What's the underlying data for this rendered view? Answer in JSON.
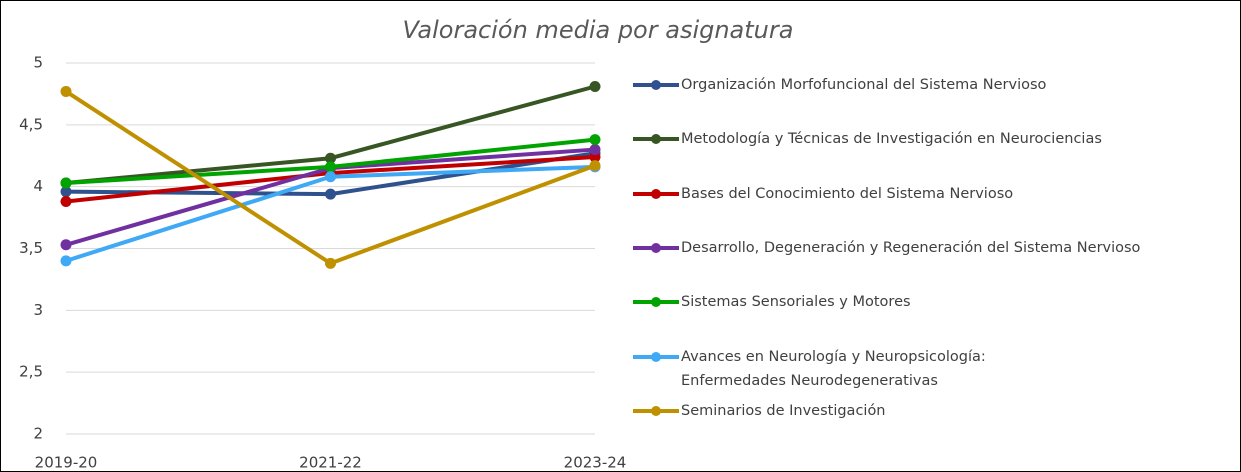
{
  "chart_data": {
    "type": "line",
    "title": "Valoración media por asignatura",
    "categories": [
      "2019-20",
      "2021-22",
      "2023-24"
    ],
    "series": [
      {
        "name": "Organización Morfofuncional del Sistema Nervioso",
        "color": "#2f528f",
        "values": [
          3.96,
          3.94,
          4.27
        ]
      },
      {
        "name": "Metodología y Técnicas de Investigación en Neurociencias",
        "color": "#375623",
        "values": [
          4.03,
          4.23,
          4.81
        ]
      },
      {
        "name": "Bases del Conocimiento del Sistema Nervioso",
        "color": "#c00000",
        "values": [
          3.88,
          4.11,
          4.24
        ]
      },
      {
        "name": "Desarrollo, Degeneración y Regeneración del Sistema Nervioso",
        "color": "#7030a0",
        "values": [
          3.53,
          4.15,
          4.3
        ]
      },
      {
        "name": "Sistemas Sensoriales y Motores",
        "color": "#00a300",
        "values": [
          4.03,
          4.16,
          4.38
        ]
      },
      {
        "name": "Avances en Neurología y Neuropsicología: Enfermedades Neurodegenerativas",
        "color": "#3fa9f5",
        "values": [
          3.4,
          4.08,
          4.16
        ]
      },
      {
        "name": "Seminarios de Investigación",
        "color": "#bf9000",
        "values": [
          4.77,
          3.38,
          4.17
        ]
      }
    ],
    "ylim": [
      2,
      5
    ],
    "yticks": [
      2,
      {
        "value": 2.5,
        "label": "2,5"
      },
      3,
      {
        "value": 3.5,
        "label": "3,5"
      },
      4,
      {
        "value": 4.5,
        "label": "4,5"
      },
      5
    ],
    "grid": true,
    "legend": "right"
  }
}
